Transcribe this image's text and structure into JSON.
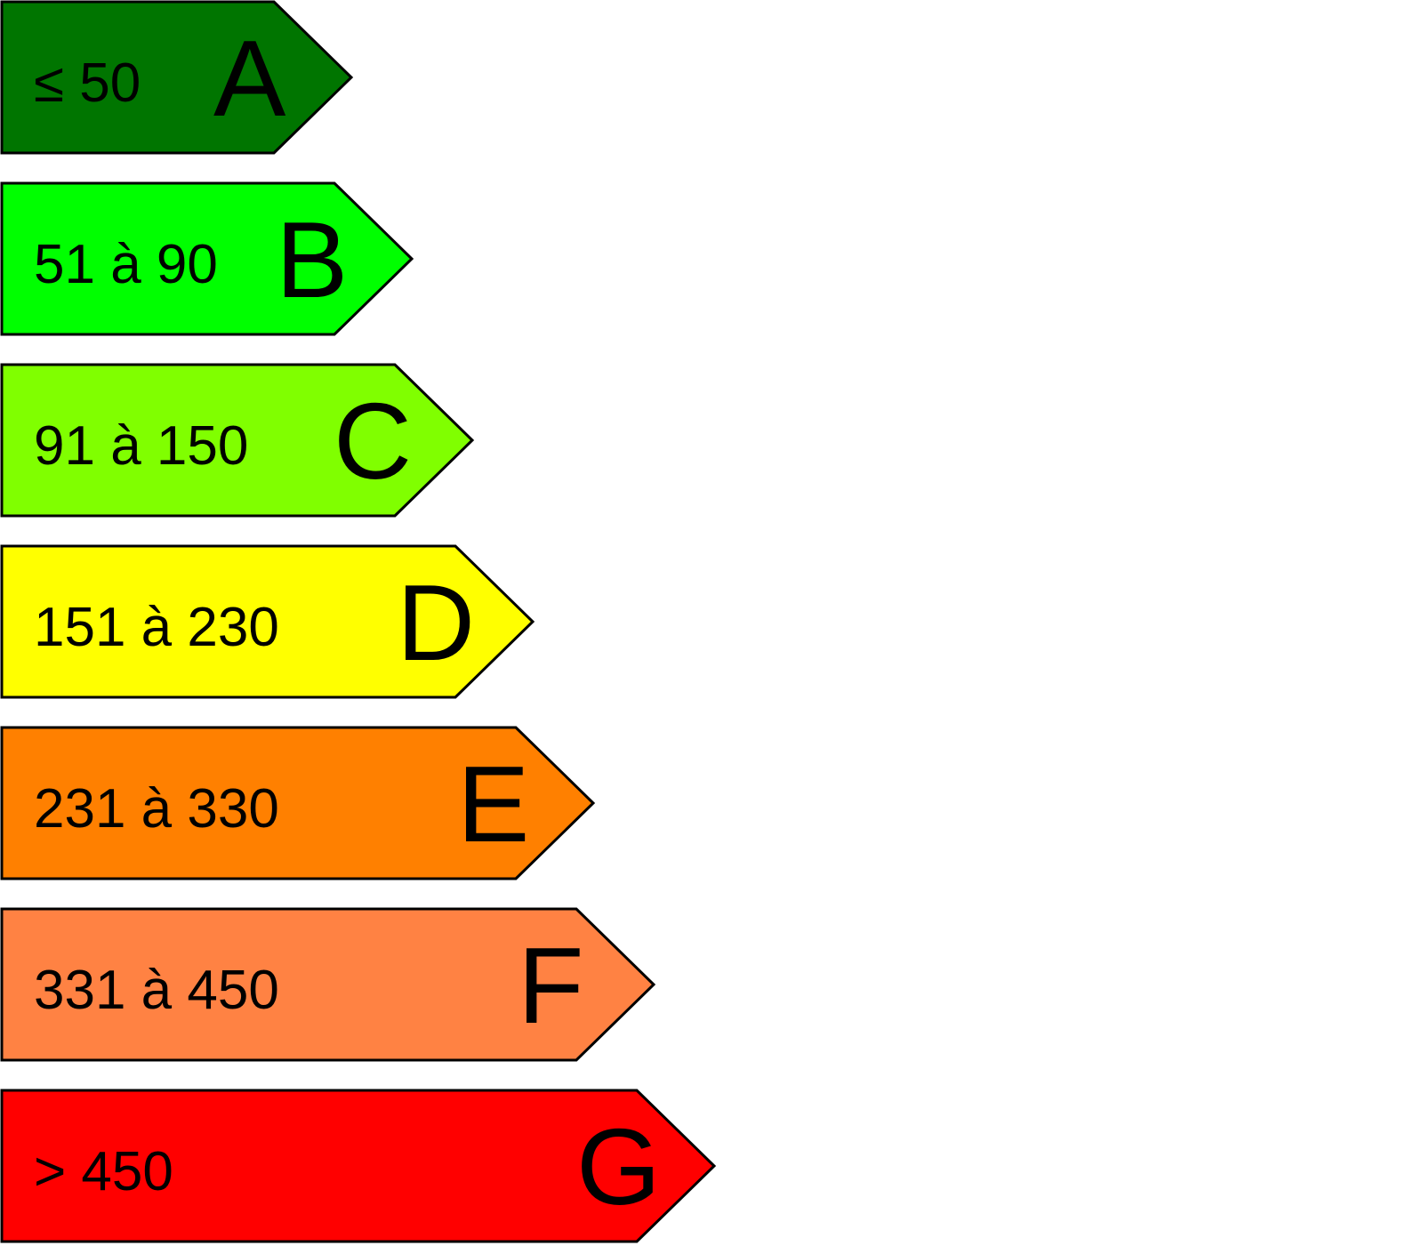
{
  "bands": [
    {
      "range": "≤ 50",
      "letter": "A"
    },
    {
      "range": "51 à 90",
      "letter": "B"
    },
    {
      "range": "91 à 150",
      "letter": "C"
    },
    {
      "range": "151 à 230",
      "letter": "D"
    },
    {
      "range": "231 à 330",
      "letter": "E"
    },
    {
      "range": "331 à 450",
      "letter": "F"
    },
    {
      "range": "> 450",
      "letter": "G"
    }
  ]
}
